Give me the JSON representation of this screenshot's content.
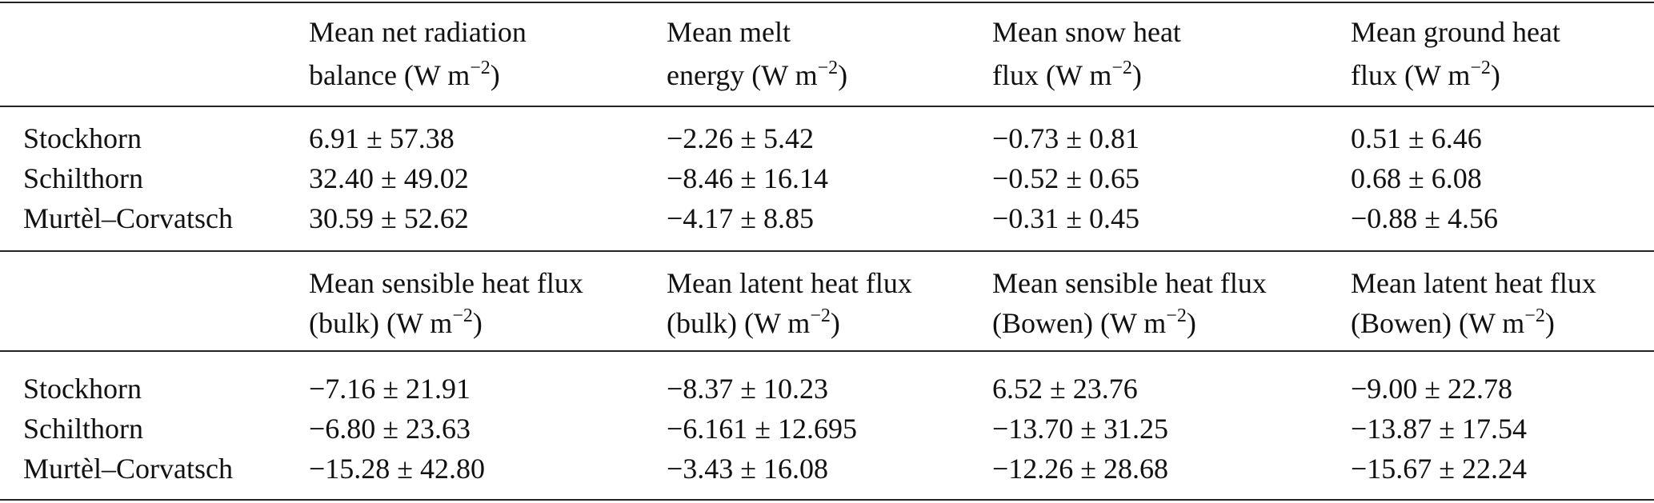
{
  "unit": {
    "base": "(W m",
    "exp": "−2",
    "close": ")"
  },
  "section1": {
    "headers": [
      {
        "line1": "Mean net radiation",
        "line2_prefix": "balance "
      },
      {
        "line1": "Mean melt",
        "line2_prefix": "energy "
      },
      {
        "line1": "Mean snow heat",
        "line2_prefix": "flux "
      },
      {
        "line1": "Mean ground heat",
        "line2_prefix": "flux "
      }
    ],
    "rows": [
      {
        "site": "Stockhorn",
        "values": [
          "6.91 ± 57.38",
          "−2.26 ± 5.42",
          "−0.73 ± 0.81",
          "0.51 ± 6.46"
        ]
      },
      {
        "site": "Schilthorn",
        "values": [
          "32.40 ± 49.02",
          "−8.46 ± 16.14",
          "−0.52 ± 0.65",
          "0.68 ± 6.08"
        ]
      },
      {
        "site": "Murtèl–Corvatsch",
        "values": [
          "30.59 ± 52.62",
          "−4.17 ± 8.85",
          "−0.31 ± 0.45",
          "−0.88 ± 4.56"
        ]
      }
    ]
  },
  "section2": {
    "headers": [
      {
        "line1": "Mean sensible heat flux",
        "line2_prefix": "(bulk) "
      },
      {
        "line1": "Mean latent heat flux",
        "line2_prefix": "(bulk) "
      },
      {
        "line1": "Mean sensible heat flux",
        "line2_prefix": "(Bowen) "
      },
      {
        "line1": "Mean latent heat flux",
        "line2_prefix": "(Bowen) "
      }
    ],
    "rows": [
      {
        "site": "Stockhorn",
        "values": [
          "−7.16 ± 21.91",
          "−8.37 ± 10.23",
          "6.52 ± 23.76",
          "−9.00 ± 22.78"
        ]
      },
      {
        "site": "Schilthorn",
        "values": [
          "−6.80 ± 23.63",
          "−6.161 ± 12.695",
          "−13.70 ± 31.25",
          "−13.87 ± 17.54"
        ]
      },
      {
        "site": "Murtèl–Corvatsch",
        "values": [
          "−15.28 ± 42.80",
          "−3.43 ± 16.08",
          "−12.26 ± 28.68",
          "−15.67 ± 22.24"
        ]
      }
    ]
  }
}
